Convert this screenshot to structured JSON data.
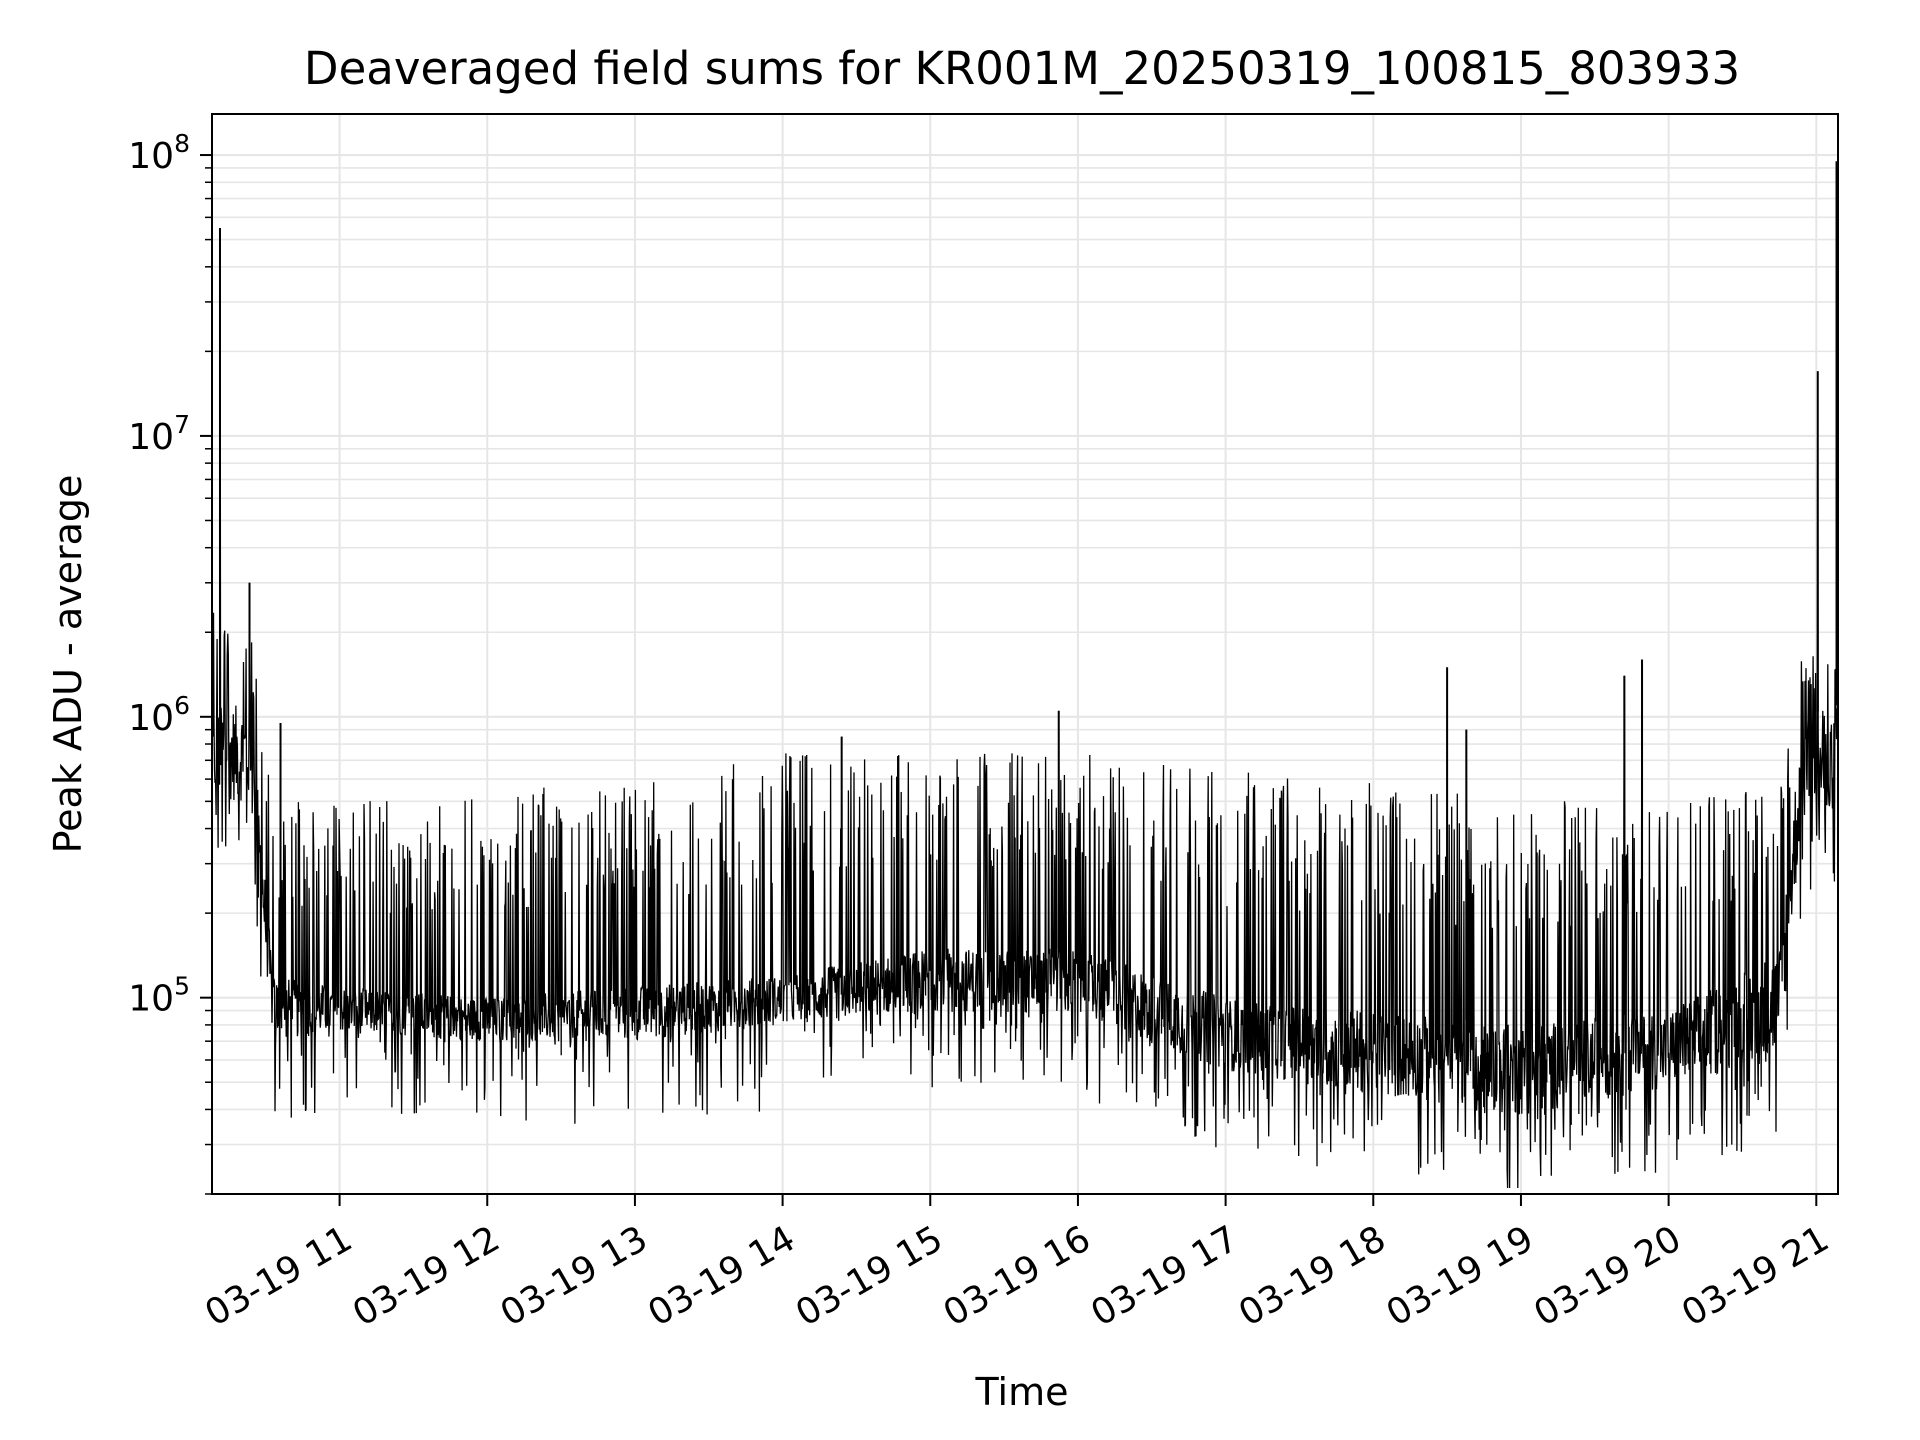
{
  "chart_data": {
    "type": "line",
    "title": "Deaveraged field sums for KR001M_20250319_100815_803933",
    "xlabel": "Time",
    "ylabel": "Peak ADU - average",
    "yscale": "log",
    "ylim": [
      20000,
      140000000
    ],
    "xlim_hours": [
      10.136,
      21.147
    ],
    "grid": true,
    "line_color": "#000000",
    "grid_color": "#e6e6e6",
    "x_ticks": [
      {
        "hour": 11,
        "label": "03-19 11"
      },
      {
        "hour": 12,
        "label": "03-19 12"
      },
      {
        "hour": 13,
        "label": "03-19 13"
      },
      {
        "hour": 14,
        "label": "03-19 14"
      },
      {
        "hour": 15,
        "label": "03-19 15"
      },
      {
        "hour": 16,
        "label": "03-19 16"
      },
      {
        "hour": 17,
        "label": "03-19 17"
      },
      {
        "hour": 18,
        "label": "03-19 18"
      },
      {
        "hour": 19,
        "label": "03-19 19"
      },
      {
        "hour": 20,
        "label": "03-19 20"
      },
      {
        "hour": 21,
        "label": "03-19 21"
      }
    ],
    "y_ticks": [
      {
        "value": 100000,
        "base": "10",
        "exp": "5"
      },
      {
        "value": 1000000,
        "base": "10",
        "exp": "6"
      },
      {
        "value": 10000000,
        "base": "10",
        "exp": "7"
      },
      {
        "value": 100000000,
        "base": "10",
        "exp": "8"
      }
    ],
    "envelope": {
      "description_hours": "approximate trend of the noisy series: [hour, baseline_low, baseline_high, typical_peak]",
      "points": [
        [
          10.14,
          500000,
          1100000,
          2500000
        ],
        [
          10.4,
          500000,
          1100000,
          2000000
        ],
        [
          10.55,
          70000,
          120000,
          500000
        ],
        [
          11.0,
          75000,
          110000,
          500000
        ],
        [
          12.0,
          70000,
          100000,
          550000
        ],
        [
          13.0,
          70000,
          110000,
          600000
        ],
        [
          14.0,
          80000,
          120000,
          750000
        ],
        [
          15.0,
          90000,
          150000,
          800000
        ],
        [
          16.0,
          85000,
          150000,
          750000
        ],
        [
          17.0,
          55000,
          100000,
          650000
        ],
        [
          18.0,
          45000,
          90000,
          580000
        ],
        [
          19.0,
          38000,
          80000,
          500000
        ],
        [
          20.0,
          48000,
          90000,
          530000
        ],
        [
          20.75,
          60000,
          150000,
          550000
        ],
        [
          20.9,
          400000,
          1000000,
          1800000
        ],
        [
          21.147,
          500000,
          1100000,
          1500000
        ]
      ]
    },
    "spikes": [
      {
        "hour": 10.19,
        "value": 55000000
      },
      {
        "hour": 10.39,
        "value": 3000000
      },
      {
        "hour": 10.6,
        "value": 950000
      },
      {
        "hour": 14.4,
        "value": 850000
      },
      {
        "hour": 15.87,
        "value": 1050000
      },
      {
        "hour": 18.5,
        "value": 1500000
      },
      {
        "hour": 18.63,
        "value": 900000
      },
      {
        "hour": 19.7,
        "value": 1400000
      },
      {
        "hour": 19.82,
        "value": 1600000
      },
      {
        "hour": 21.01,
        "value": 17000000
      },
      {
        "hour": 21.16,
        "value": 95000000
      }
    ]
  }
}
